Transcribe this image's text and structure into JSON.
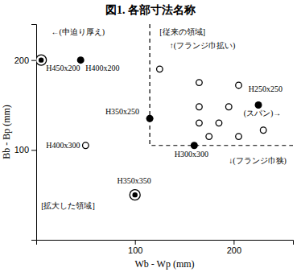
{
  "chart_data": {
    "type": "scatter",
    "title": "図1. 各部寸法名称",
    "x_label": "Wb - Wp (mm)",
    "y_label": "Bb - Bp (mm)",
    "xlim": [
      0,
      260
    ],
    "ylim": [
      0,
      240
    ],
    "xticks": [
      100,
      200
    ],
    "yticks": [
      100,
      200
    ],
    "series": [
      {
        "marker": "double",
        "color": "#000000",
        "x": [
          5,
          100
        ],
        "values": [
          200,
          50
        ]
      },
      {
        "marker": "filled",
        "color": "#000000",
        "x": [
          45,
          115,
          160,
          225
        ],
        "values": [
          200,
          135,
          105,
          150
        ]
      },
      {
        "marker": "open",
        "color": "#000000",
        "x": [
          125,
          165,
          205,
          165,
          195,
          165,
          185,
          175,
          205,
          230,
          50
        ],
        "values": [
          190,
          175,
          172,
          148,
          148,
          130,
          130,
          115,
          115,
          122,
          105
        ]
      }
    ],
    "boundary": {
      "line_style": "dashed",
      "x": [
        115,
        115,
        260
      ],
      "y": [
        240,
        105,
        105
      ]
    },
    "annotations": [
      {
        "text": "H450x200",
        "x": 10,
        "y": 188
      },
      {
        "text": "H400x200",
        "x": 50,
        "y": 188
      },
      {
        "text": "←(中迫り厚え)",
        "x": 15,
        "y": 228
      },
      {
        "text": "[従来の領域]",
        "x": 125,
        "y": 228
      },
      {
        "text": "↑(フランジ巾拡い)",
        "x": 135,
        "y": 213
      },
      {
        "text": "H250x250",
        "x": 215,
        "y": 165
      },
      {
        "text": "H350x250",
        "x": 70,
        "y": 140
      },
      {
        "text": "(スパン)→",
        "x": 210,
        "y": 138
      },
      {
        "text": "H300x300",
        "x": 140,
        "y": 92
      },
      {
        "text": "H400x300",
        "x": 10,
        "y": 102
      },
      {
        "text": "↓(フランジ巾狭)",
        "x": 195,
        "y": 85
      },
      {
        "text": "H350x350",
        "x": 82,
        "y": 63
      },
      {
        "text": "[拡大した領域]",
        "x": 5,
        "y": 35
      }
    ]
  }
}
